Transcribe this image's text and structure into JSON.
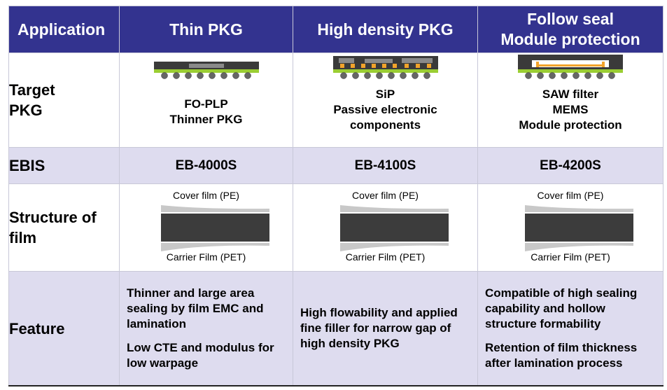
{
  "header": {
    "col0": "Application",
    "col1": "Thin PKG",
    "col2": "High density PKG",
    "col3_line1": "Follow  seal",
    "col3_line2": "Module protection"
  },
  "rows": {
    "target_label_line1": "Target",
    "target_label_line2": "PKG",
    "ebis_label": "EBIS",
    "structure_label_line1": "Structure of",
    "structure_label_line2": "film",
    "feature_label": "Feature"
  },
  "columns": [
    {
      "target_lines": [
        "FO-PLP",
        "Thinner PKG"
      ],
      "ebis": "EB-4000S",
      "cover_film": "Cover film (PE)",
      "carrier_film": "Carrier Film (PET)",
      "features": [
        "Thinner and  large area sealing by film EMC and lamination",
        "Low CTE and modulus for low warpage"
      ]
    },
    {
      "target_lines": [
        "SiP",
        "Passive electronic",
        "components"
      ],
      "ebis": "EB-4100S",
      "cover_film": "Cover film (PE)",
      "carrier_film": "Carrier Film (PET)",
      "features": [
        "High flowability and applied fine filler for narrow gap of high density PKG"
      ]
    },
    {
      "target_lines": [
        "SAW filter",
        "MEMS",
        "Module protection"
      ],
      "ebis": "EB-4200S",
      "cover_film": "Cover film (PE)",
      "carrier_film": "Carrier Film (PET)",
      "features": [
        "Compatible of high sealing capability and hollow structure formability",
        "Retention of film thickness after lamination process"
      ]
    }
  ]
}
